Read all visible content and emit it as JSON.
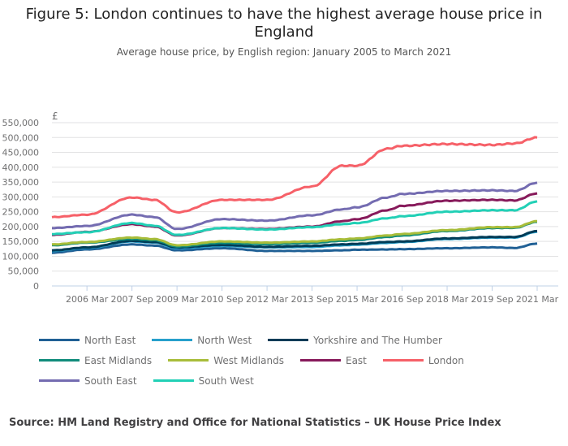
{
  "title": "Figure 5: London continues to have the highest average house price in England",
  "subtitle": "Average house price, by English region: January 2005 to March 2021",
  "source": "Source: HM Land Registry and Office for National Statistics – UK House Price Index",
  "chart_data": {
    "type": "line",
    "ylabel": "£",
    "ylim": [
      0,
      550000
    ],
    "yticks": [
      0,
      50000,
      100000,
      150000,
      200000,
      250000,
      300000,
      350000,
      400000,
      450000,
      500000,
      550000
    ],
    "ytick_labels": [
      "0",
      "50,000",
      "100,000",
      "150,000",
      "200,000",
      "250,000",
      "300,000",
      "350,000",
      "400,000",
      "450,000",
      "500,000",
      "550,000"
    ],
    "xlim": [
      "2005-01",
      "2021-03"
    ],
    "xtick_labels": [
      "2006 Mar",
      "2007 Sep",
      "2009 Mar",
      "2010 Sep",
      "2012 Mar",
      "2013 Sep",
      "2015 Mar",
      "2016 Sep",
      "2018 Mar",
      "2019 Sep",
      "2021 Mar"
    ],
    "xtick_months": [
      14,
      32,
      50,
      68,
      86,
      104,
      122,
      140,
      158,
      176,
      194
    ],
    "grid": true,
    "legend_position": "bottom",
    "x_months": [
      0,
      14,
      32,
      41,
      50,
      68,
      86,
      104,
      116,
      122,
      134,
      140,
      158,
      176,
      185,
      194
    ],
    "series": [
      {
        "name": "North East",
        "color": "#206095",
        "values": [
          112000,
          123000,
          140000,
          136000,
          120000,
          127000,
          118000,
          118000,
          120000,
          122000,
          123000,
          124000,
          127000,
          130000,
          128000,
          143000
        ]
      },
      {
        "name": "North West",
        "color": "#27a0cc",
        "values": [
          118000,
          128000,
          150000,
          146000,
          127000,
          135000,
          130000,
          131000,
          137000,
          139000,
          145000,
          148000,
          158000,
          163000,
          163000,
          183000
        ]
      },
      {
        "name": "Yorkshire and The Humber",
        "color": "#003c57",
        "values": [
          120000,
          130000,
          152000,
          148000,
          130000,
          138000,
          132000,
          135000,
          140000,
          142000,
          148000,
          150000,
          160000,
          165000,
          165000,
          185000
        ]
      },
      {
        "name": "East Midlands",
        "color": "#118c7b",
        "values": [
          137000,
          146000,
          158000,
          154000,
          133000,
          145000,
          141000,
          145000,
          152000,
          155000,
          165000,
          170000,
          185000,
          195000,
          196000,
          216000
        ]
      },
      {
        "name": "West Midlands",
        "color": "#a8bd3a",
        "values": [
          140000,
          148000,
          163000,
          158000,
          137000,
          150000,
          146000,
          150000,
          157000,
          160000,
          170000,
          175000,
          188000,
          198000,
          198000,
          218000
        ]
      },
      {
        "name": "East",
        "color": "#871a5b",
        "values": [
          172000,
          182000,
          208000,
          200000,
          170000,
          195000,
          192000,
          200000,
          218000,
          225000,
          255000,
          270000,
          287000,
          290000,
          288000,
          312000
        ]
      },
      {
        "name": "London",
        "color": "#f66068",
        "values": [
          232000,
          240000,
          298000,
          290000,
          248000,
          290000,
          290000,
          335000,
          405000,
          405000,
          462000,
          472000,
          478000,
          475000,
          480000,
          500000
        ]
      },
      {
        "name": "South East",
        "color": "#746cb1",
        "values": [
          195000,
          202000,
          240000,
          232000,
          192000,
          225000,
          220000,
          238000,
          258000,
          265000,
          298000,
          310000,
          320000,
          322000,
          320000,
          348000
        ]
      },
      {
        "name": "South West",
        "color": "#22d0b6",
        "values": [
          175000,
          181000,
          212000,
          203000,
          172000,
          195000,
          190000,
          198000,
          208000,
          212000,
          228000,
          235000,
          250000,
          255000,
          255000,
          285000
        ]
      }
    ]
  }
}
